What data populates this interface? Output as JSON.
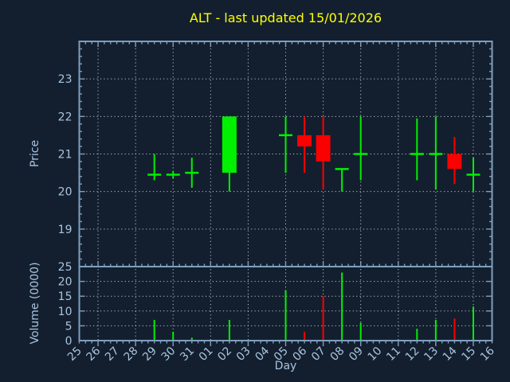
{
  "window": {
    "title": "ALT - last updated 15/01/2026"
  },
  "chart_data": {
    "type": "candlestick",
    "title": "ALT - last updated 15/01/2026",
    "xlabel": "Day",
    "grid": true,
    "price_axis": {
      "label": "Price",
      "min": 18,
      "max": 24,
      "ticks": [
        19,
        20,
        21,
        22,
        23
      ]
    },
    "volume_axis": {
      "label": "Volume (0000)",
      "min": 0,
      "max": 25,
      "ticks": [
        0,
        5,
        10,
        15,
        20,
        25
      ]
    },
    "x_axis": {
      "labels": [
        "25",
        "26",
        "27",
        "28",
        "29",
        "30",
        "31",
        "01",
        "02",
        "03",
        "04",
        "05",
        "06",
        "07",
        "08",
        "09",
        "10",
        "11",
        "12",
        "13",
        "14",
        "15",
        "16"
      ],
      "gridline_label_indices": [
        1,
        3,
        5,
        7,
        9,
        11,
        13,
        15,
        17,
        19,
        21
      ]
    },
    "candles": [
      {
        "day": "29",
        "index": 4,
        "open": 20.45,
        "high": 21.0,
        "low": 20.3,
        "close": 20.45,
        "direction": "up",
        "volume": 7
      },
      {
        "day": "30",
        "index": 5,
        "open": 20.45,
        "high": 20.55,
        "low": 20.35,
        "close": 20.45,
        "direction": "up",
        "volume": 3
      },
      {
        "day": "31",
        "index": 6,
        "open": 20.5,
        "high": 20.9,
        "low": 20.1,
        "close": 20.5,
        "direction": "up",
        "volume": 1
      },
      {
        "day": "02",
        "index": 8,
        "open": 20.5,
        "high": 22.0,
        "low": 20.0,
        "close": 22.0,
        "direction": "up",
        "volume": 7
      },
      {
        "day": "05",
        "index": 11,
        "open": 21.5,
        "high": 22.0,
        "low": 20.5,
        "close": 21.5,
        "direction": "up",
        "volume": 17
      },
      {
        "day": "06",
        "index": 12,
        "open": 21.5,
        "high": 22.0,
        "low": 20.5,
        "close": 21.2,
        "direction": "down",
        "volume": 3
      },
      {
        "day": "07",
        "index": 13,
        "open": 21.5,
        "high": 22.0,
        "low": 20.05,
        "close": 20.8,
        "direction": "down",
        "volume": 15
      },
      {
        "day": "08",
        "index": 14,
        "open": 20.6,
        "high": 20.6,
        "low": 20.0,
        "close": 20.6,
        "direction": "up",
        "volume": 23
      },
      {
        "day": "09",
        "index": 15,
        "open": 21.0,
        "high": 22.0,
        "low": 20.3,
        "close": 21.0,
        "direction": "up",
        "volume": 6
      },
      {
        "day": "12",
        "index": 18,
        "open": 21.0,
        "high": 21.95,
        "low": 20.3,
        "close": 21.0,
        "direction": "up",
        "volume": 4
      },
      {
        "day": "13",
        "index": 19,
        "open": 21.0,
        "high": 22.0,
        "low": 20.05,
        "close": 21.0,
        "direction": "up",
        "volume": 7
      },
      {
        "day": "14",
        "index": 20,
        "open": 21.0,
        "high": 21.45,
        "low": 20.2,
        "close": 20.6,
        "direction": "down",
        "volume": 7.5
      },
      {
        "day": "15",
        "index": 21,
        "open": 20.45,
        "high": 20.9,
        "low": 20.0,
        "close": 20.45,
        "direction": "up",
        "volume": 11.5
      }
    ],
    "colors": {
      "background": "#131f2f",
      "up": "#00f000",
      "down": "#fa0000",
      "axis": "#7f9fbe",
      "text": "#a9c4de",
      "grid": "#b9c0c7",
      "title": "#ffff00"
    }
  }
}
